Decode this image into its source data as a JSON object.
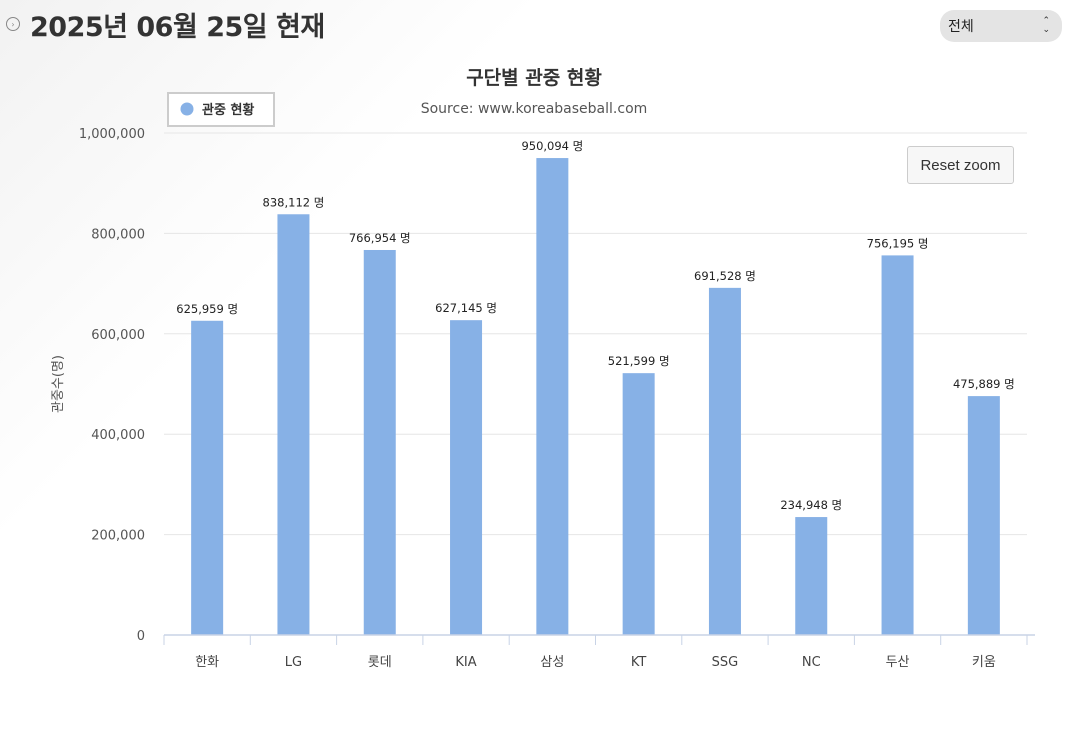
{
  "header": {
    "title": "2025년 06월 25일 현재"
  },
  "filter": {
    "selected": "전체"
  },
  "reset_zoom_label": "Reset zoom",
  "colors": {
    "bar": "#87b1e6",
    "grid": "#e6e6e6"
  },
  "chart_data": {
    "type": "bar",
    "title": "구단별 관중 현황",
    "subtitle": "Source: www.koreabaseball.com",
    "ylabel": "관중수(명)",
    "xlabel": "",
    "ylim": [
      0,
      1000000
    ],
    "yticks": [
      0,
      200000,
      400000,
      600000,
      800000,
      1000000
    ],
    "ytick_labels": [
      "0",
      "200,000",
      "400,000",
      "600,000",
      "800,000",
      "1,000,000"
    ],
    "legend": "top-left",
    "grid": true,
    "categories": [
      "한화",
      "LG",
      "롯데",
      "KIA",
      "삼성",
      "KT",
      "SSG",
      "NC",
      "두산",
      "키움"
    ],
    "series": [
      {
        "name": "관중 현황",
        "values": [
          625959,
          838112,
          766954,
          627145,
          950094,
          521599,
          691528,
          234948,
          756195,
          475889
        ],
        "labels": [
          "625,959 명",
          "838,112 명",
          "766,954 명",
          "627,145 명",
          "950,094 명",
          "521,599 명",
          "691,528 명",
          "234,948 명",
          "756,195 명",
          "475,889 명"
        ]
      }
    ]
  }
}
